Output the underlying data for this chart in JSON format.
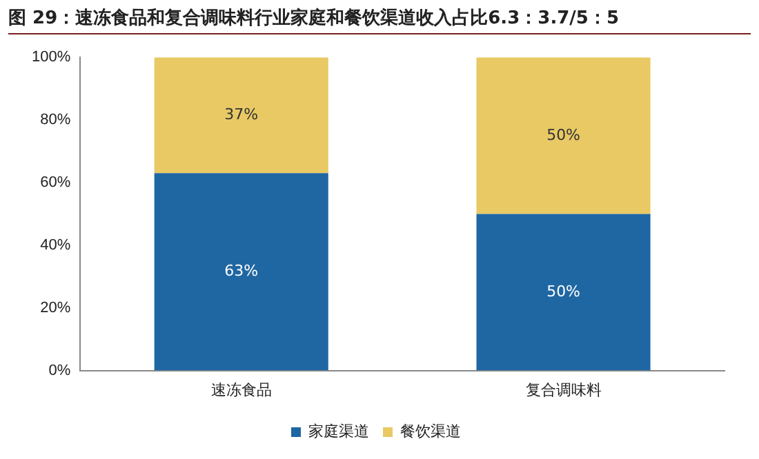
{
  "chart_data": {
    "type": "bar",
    "title": "图 29：速冻食品和复合调味料行业家庭和餐饮渠道收入占比6.3：3.7/5：5",
    "categories": [
      "速冻食品",
      "复合调味料"
    ],
    "stacked": true,
    "legend": "bottom",
    "series": [
      {
        "name": "家庭渠道",
        "color": "#1f67a3",
        "values": [
          63,
          50
        ],
        "value_labels": [
          "63%",
          "50%"
        ]
      },
      {
        "name": "餐饮渠道",
        "color": "#e8c964",
        "values": [
          37,
          50
        ],
        "value_labels": [
          "37%",
          "50%"
        ]
      }
    ],
    "ylim": [
      0,
      100
    ],
    "yticks": [
      {
        "value": 0,
        "label": "0%"
      },
      {
        "value": 20,
        "label": "20%"
      },
      {
        "value": 40,
        "label": "40%"
      },
      {
        "value": 60,
        "label": "60%"
      },
      {
        "value": 80,
        "label": "80%"
      },
      {
        "value": 100,
        "label": "100%"
      }
    ]
  }
}
